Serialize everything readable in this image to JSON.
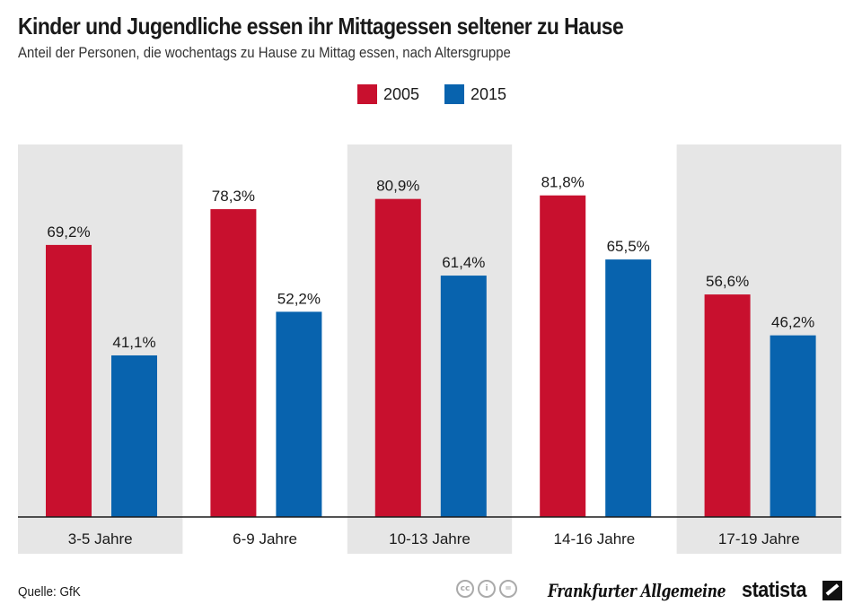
{
  "header": {
    "title": "Kinder und Jugendliche essen ihr Mittagessen seltener zu Hause",
    "subtitle": "Anteil der Personen, die wochentags zu Hause zu Mittag essen, nach Altersgruppe"
  },
  "footer": {
    "source": "Quelle: GfK",
    "publisher_logo": "Frankfurter Allgemeine",
    "brand_logo": "statista",
    "license_icons": [
      "cc",
      "by",
      "nd"
    ]
  },
  "chart_data": {
    "type": "bar",
    "categories": [
      "3-5 Jahre",
      "6-9 Jahre",
      "10-13 Jahre",
      "14-16 Jahre",
      "17-19 Jahre"
    ],
    "series": [
      {
        "name": "2005",
        "color": "#c8102e",
        "values": [
          69.2,
          78.3,
          80.9,
          81.8,
          56.6
        ],
        "labels": [
          "69,2%",
          "78,3%",
          "80,9%",
          "81,8%",
          "56,6%"
        ]
      },
      {
        "name": "2015",
        "color": "#0863ae",
        "values": [
          41.1,
          52.2,
          61.4,
          65.5,
          46.2
        ],
        "labels": [
          "41,1%",
          "52,2%",
          "61,4%",
          "65,5%",
          "46,2%"
        ]
      }
    ],
    "ylim": [
      0,
      100
    ],
    "grid": false,
    "legend_position": "top-center",
    "band_color": "#e6e6e6",
    "axis_color": "#1a1a1a"
  }
}
